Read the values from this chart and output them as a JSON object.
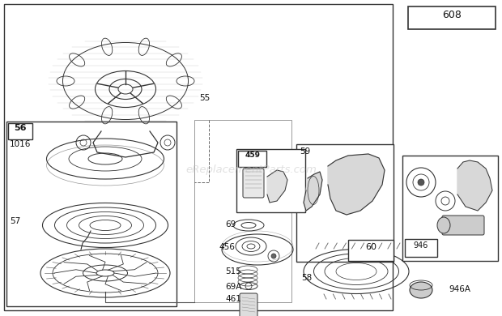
{
  "bg_color": "#ffffff",
  "line_color": "#333333",
  "text_color": "#111111",
  "watermark": "eReplacementParts.com",
  "watermark_color": "#bbbbbb",
  "watermark_alpha": 0.45,
  "label_fontsize": 7.5,
  "figsize": [
    6.2,
    3.9
  ],
  "dpi": 100
}
